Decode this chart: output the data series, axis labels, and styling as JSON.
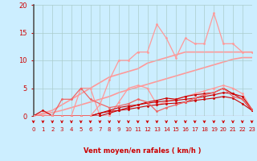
{
  "x": [
    0,
    1,
    2,
    3,
    4,
    5,
    6,
    7,
    8,
    9,
    10,
    11,
    12,
    13,
    14,
    15,
    16,
    17,
    18,
    19,
    20,
    21,
    22,
    23
  ],
  "series": [
    {
      "y": [
        0,
        0,
        0,
        0,
        0,
        0,
        0,
        0,
        0,
        0,
        0,
        0,
        0,
        0,
        0,
        0,
        0,
        0,
        0,
        0,
        0,
        0,
        0,
        0
      ],
      "color": "#cc0000",
      "lw": 0.8,
      "marker": null,
      "zorder": 2
    },
    {
      "y": [
        0,
        1.0,
        0,
        0,
        0,
        0,
        0,
        0.5,
        0.8,
        1.0,
        1.2,
        1.5,
        1.8,
        2.0,
        2.2,
        2.3,
        2.5,
        2.8,
        3.0,
        3.2,
        3.5,
        3.2,
        2.2,
        1.0
      ],
      "color": "#cc0000",
      "lw": 0.8,
      "marker": "o",
      "ms": 2.0,
      "zorder": 3
    },
    {
      "y": [
        0,
        0,
        0,
        0,
        0,
        0,
        0,
        0.5,
        1.0,
        1.5,
        1.8,
        2.0,
        2.3,
        2.5,
        2.7,
        2.8,
        3.0,
        3.2,
        3.5,
        3.8,
        4.2,
        4.0,
        3.0,
        1.0
      ],
      "color": "#cc0000",
      "lw": 0.8,
      "marker": "o",
      "ms": 2.0,
      "zorder": 3
    },
    {
      "y": [
        0,
        0,
        0,
        0,
        0,
        0,
        0,
        0,
        0.5,
        1.0,
        1.5,
        2.0,
        2.5,
        2.8,
        3.2,
        3.0,
        3.5,
        3.8,
        4.0,
        4.2,
        5.0,
        4.0,
        3.5,
        1.2
      ],
      "color": "#cc0000",
      "lw": 0.8,
      "marker": "o",
      "ms": 2.0,
      "zorder": 3
    },
    {
      "y": [
        0,
        0,
        0,
        3.0,
        3.0,
        5.0,
        3.0,
        2.2,
        1.5,
        1.8,
        2.2,
        3.0,
        2.5,
        0.8,
        1.5,
        2.0,
        2.5,
        3.2,
        3.8,
        4.2,
        5.0,
        3.5,
        3.0,
        1.2
      ],
      "color": "#ee6666",
      "lw": 0.9,
      "marker": "o",
      "ms": 2.0,
      "zorder": 3
    },
    {
      "y": [
        0,
        0,
        0,
        0,
        0,
        0,
        0,
        2.0,
        6.5,
        10.0,
        10.0,
        11.5,
        11.5,
        16.5,
        14.0,
        10.5,
        14.0,
        13.0,
        13.0,
        18.5,
        13.0,
        13.0,
        11.5,
        11.5
      ],
      "color": "#ff9999",
      "lw": 0.9,
      "marker": "o",
      "ms": 2.0,
      "zorder": 3
    },
    {
      "y": [
        0,
        0,
        0,
        0,
        0,
        5.0,
        5.0,
        0,
        0,
        2.5,
        5.0,
        5.5,
        5.0,
        2.0,
        2.5,
        3.0,
        3.5,
        4.0,
        4.5,
        5.0,
        5.5,
        5.0,
        4.0,
        1.2
      ],
      "color": "#ff9999",
      "lw": 0.9,
      "marker": "o",
      "ms": 2.0,
      "zorder": 2
    },
    {
      "y": [
        0.0,
        0.5,
        1.0,
        2.0,
        3.0,
        4.0,
        5.0,
        6.0,
        7.0,
        7.5,
        8.0,
        8.5,
        9.5,
        10.0,
        10.5,
        11.0,
        11.5,
        11.5,
        11.5,
        11.5,
        11.5,
        11.5,
        11.5,
        11.5
      ],
      "color": "#ff9999",
      "lw": 1.2,
      "marker": null,
      "zorder": 1
    },
    {
      "y": [
        0.0,
        0.3,
        0.6,
        1.0,
        1.5,
        2.0,
        2.5,
        3.0,
        3.5,
        4.2,
        4.7,
        5.2,
        5.7,
        6.2,
        6.7,
        7.2,
        7.7,
        8.2,
        8.7,
        9.2,
        9.7,
        10.2,
        10.5,
        10.5
      ],
      "color": "#ff9999",
      "lw": 1.2,
      "marker": null,
      "zorder": 1
    }
  ],
  "xlabel": "Vent moyen/en rafales ( km/h )",
  "xlim": [
    0,
    23
  ],
  "ylim": [
    0,
    20
  ],
  "yticks": [
    0,
    5,
    10,
    15,
    20
  ],
  "xticks": [
    0,
    1,
    2,
    3,
    4,
    5,
    6,
    7,
    8,
    9,
    10,
    11,
    12,
    13,
    14,
    15,
    16,
    17,
    18,
    19,
    20,
    21,
    22,
    23
  ],
  "bg_color": "#cceeff",
  "grid_color": "#aacccc",
  "arrow_color": "#cc0000",
  "tick_color": "#cc0000",
  "label_color": "#cc0000",
  "spine_color": "#555555"
}
